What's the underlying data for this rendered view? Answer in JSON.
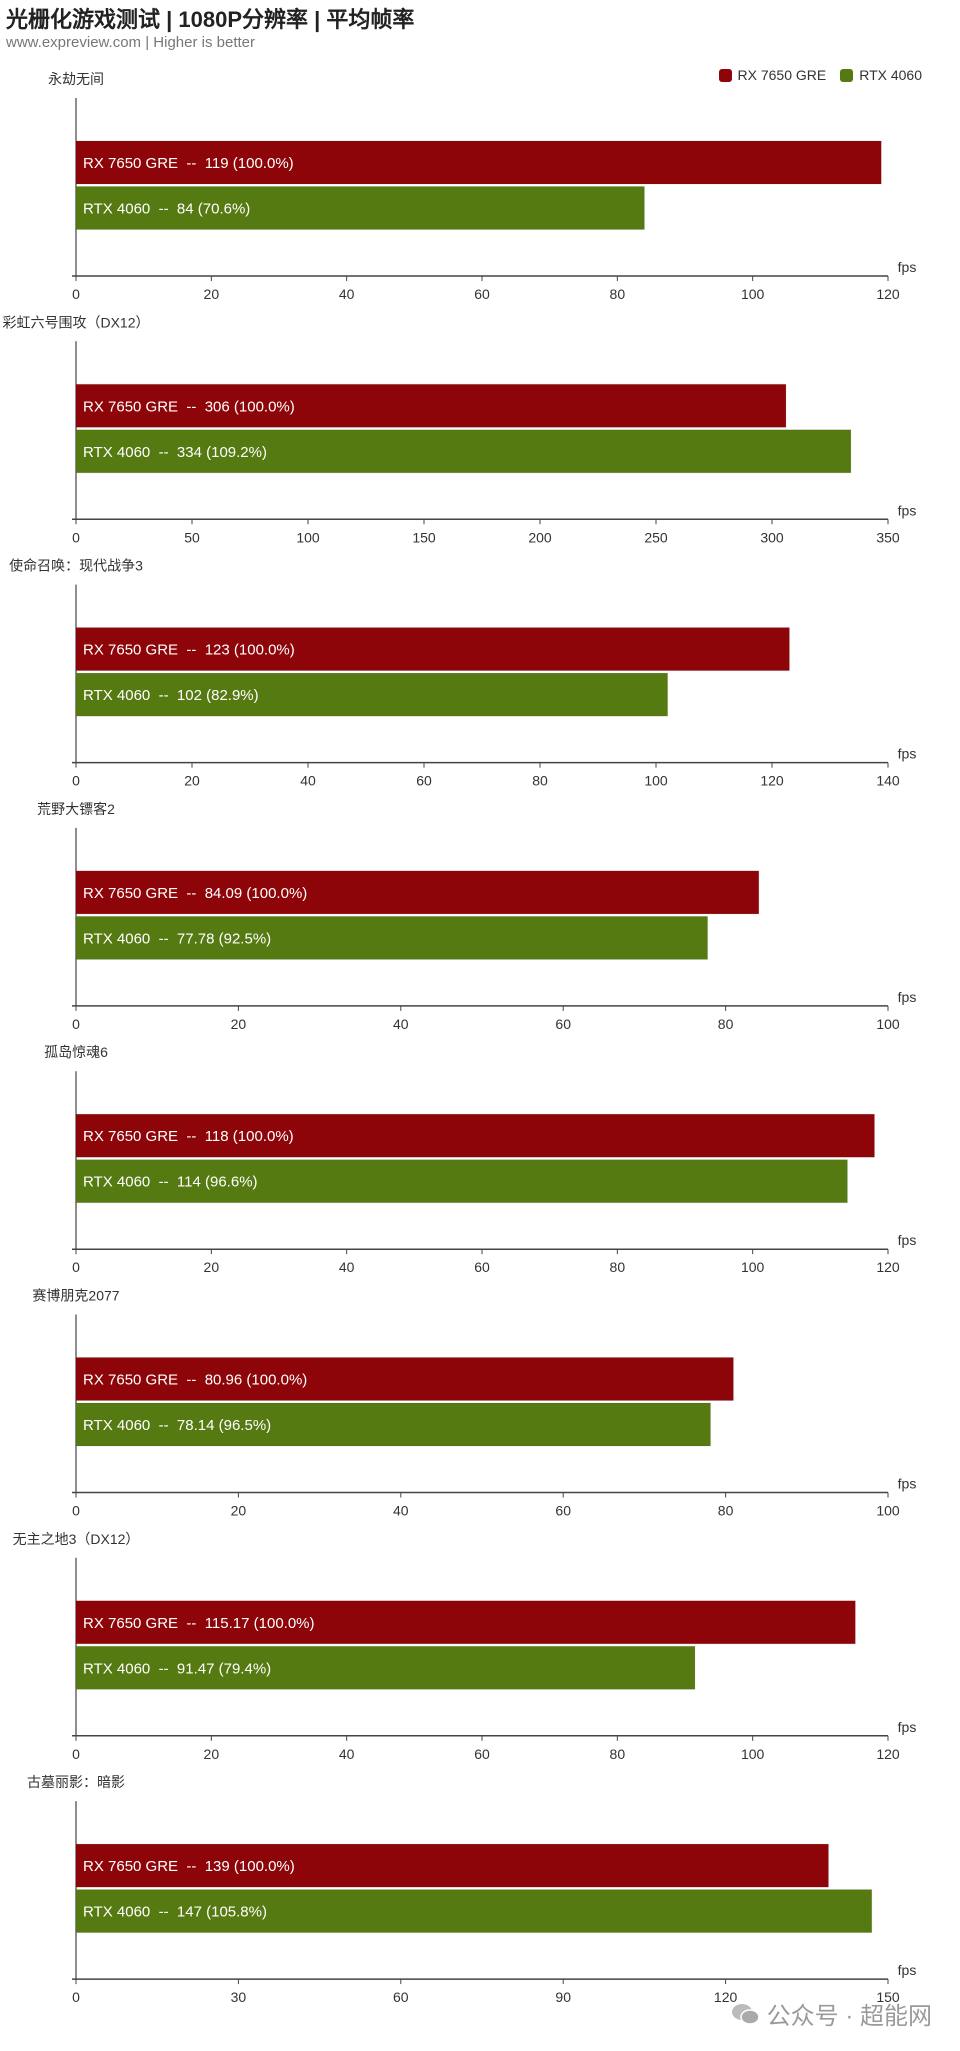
{
  "header": {
    "title": "光栅化游戏测试 | 1080P分辨率 | 平均帧率",
    "subtitle": "www.expreview.com | Higher is better"
  },
  "legend": [
    {
      "label": "RX 7650 GRE",
      "color": "#8e0509"
    },
    {
      "label": "RTX 4060",
      "color": "#567a12"
    }
  ],
  "watermark": "公众号 · 超能网",
  "chart_data": [
    {
      "type": "bar",
      "title": "永劫无间",
      "xlabel": "fps",
      "xlim": [
        0,
        120
      ],
      "ticks": [
        0,
        20,
        40,
        60,
        80,
        100,
        120
      ],
      "series": [
        {
          "name": "RX 7650 GRE",
          "value": 119,
          "label": "RX 7650 GRE  --  119 (100.0%)"
        },
        {
          "name": "RTX 4060",
          "value": 84,
          "label": "RTX 4060  --  84 (70.6%)"
        }
      ]
    },
    {
      "type": "bar",
      "title": "彩虹六号围攻（DX12）",
      "xlabel": "fps",
      "xlim": [
        0,
        350
      ],
      "ticks": [
        0,
        50,
        100,
        150,
        200,
        250,
        300,
        350
      ],
      "series": [
        {
          "name": "RX 7650 GRE",
          "value": 306,
          "label": "RX 7650 GRE  --  306 (100.0%)"
        },
        {
          "name": "RTX 4060",
          "value": 334,
          "label": "RTX 4060  --  334 (109.2%)"
        }
      ]
    },
    {
      "type": "bar",
      "title": "使命召唤：现代战争3",
      "xlabel": "fps",
      "xlim": [
        0,
        140
      ],
      "ticks": [
        0,
        20,
        40,
        60,
        80,
        100,
        120,
        140
      ],
      "series": [
        {
          "name": "RX 7650 GRE",
          "value": 123,
          "label": "RX 7650 GRE  --  123 (100.0%)"
        },
        {
          "name": "RTX 4060",
          "value": 102,
          "label": "RTX 4060  --  102 (82.9%)"
        }
      ]
    },
    {
      "type": "bar",
      "title": "荒野大镖客2",
      "xlabel": "fps",
      "xlim": [
        0,
        100
      ],
      "ticks": [
        0,
        20,
        40,
        60,
        80,
        100
      ],
      "series": [
        {
          "name": "RX 7650 GRE",
          "value": 84.09,
          "label": "RX 7650 GRE  --  84.09 (100.0%)"
        },
        {
          "name": "RTX 4060",
          "value": 77.78,
          "label": "RTX 4060  --  77.78 (92.5%)"
        }
      ]
    },
    {
      "type": "bar",
      "title": "孤岛惊魂6",
      "xlabel": "fps",
      "xlim": [
        0,
        120
      ],
      "ticks": [
        0,
        20,
        40,
        60,
        80,
        100,
        120
      ],
      "series": [
        {
          "name": "RX 7650 GRE",
          "value": 118,
          "label": "RX 7650 GRE  --  118 (100.0%)"
        },
        {
          "name": "RTX 4060",
          "value": 114,
          "label": "RTX 4060  --  114 (96.6%)"
        }
      ]
    },
    {
      "type": "bar",
      "title": "赛博朋克2077",
      "xlabel": "fps",
      "xlim": [
        0,
        100
      ],
      "ticks": [
        0,
        20,
        40,
        60,
        80,
        100
      ],
      "series": [
        {
          "name": "RX 7650 GRE",
          "value": 80.96,
          "label": "RX 7650 GRE  --  80.96 (100.0%)"
        },
        {
          "name": "RTX 4060",
          "value": 78.14,
          "label": "RTX 4060  --  78.14 (96.5%)"
        }
      ]
    },
    {
      "type": "bar",
      "title": "无主之地3（DX12）",
      "xlabel": "fps",
      "xlim": [
        0,
        120
      ],
      "ticks": [
        0,
        20,
        40,
        60,
        80,
        100,
        120
      ],
      "series": [
        {
          "name": "RX 7650 GRE",
          "value": 115.17,
          "label": "RX 7650 GRE  --  115.17 (100.0%)"
        },
        {
          "name": "RTX 4060",
          "value": 91.47,
          "label": "RTX 4060  --  91.47 (79.4%)"
        }
      ]
    },
    {
      "type": "bar",
      "title": "古墓丽影：暗影",
      "xlabel": "fps",
      "xlim": [
        0,
        150
      ],
      "ticks": [
        0,
        30,
        60,
        90,
        120,
        150
      ],
      "series": [
        {
          "name": "RX 7650 GRE",
          "value": 139,
          "label": "RX 7650 GRE  --  139 (100.0%)"
        },
        {
          "name": "RTX 4060",
          "value": 147,
          "label": "RTX 4060  --  147 (105.8%)"
        }
      ]
    }
  ]
}
